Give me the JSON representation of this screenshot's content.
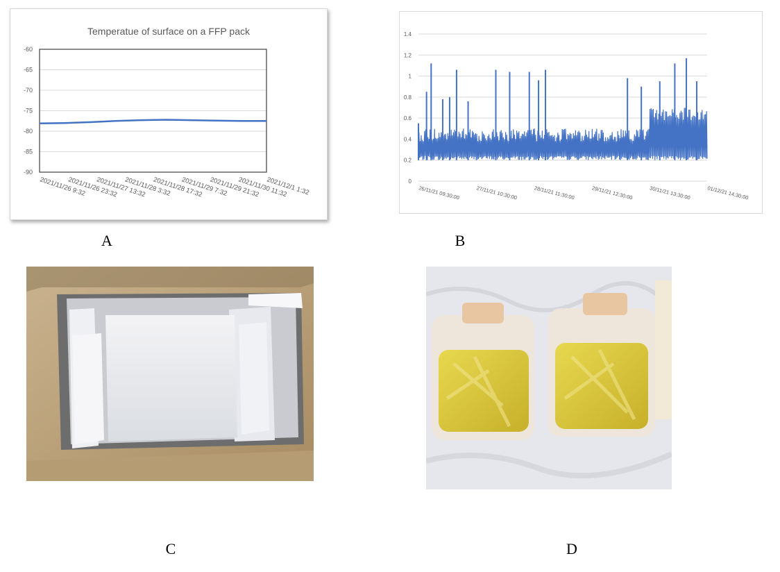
{
  "chart_data": [
    {
      "type": "line",
      "title": "Temperatue of surface on a FFP pack",
      "xlabel": "",
      "ylabel": "",
      "ylim": [
        -90,
        -60
      ],
      "yticks": [
        -60,
        -65,
        -70,
        -75,
        -80,
        -85,
        -90
      ],
      "xtick_labels": [
        "2021/11/26 9:32",
        "2021/11/26 23:32",
        "2021/11/27 13:32",
        "2021/11/28 3:32",
        "2021/11/28 17:32",
        "2021/11/29 7:32",
        "2021/11/29 21:32",
        "2021/11/30 11:32",
        "2021/12/1 1:32"
      ],
      "series": [
        {
          "color": "#4472c4",
          "x": [
            "2021/11/26 9:32",
            "2021/11/26 23:32",
            "2021/11/27 13:32",
            "2021/11/28 3:32",
            "2021/11/28 17:32",
            "2021/11/29 7:32",
            "2021/11/29 21:32",
            "2021/11/30 11:32",
            "2021/12/1 1:32",
            "2021/12/1 9:32"
          ],
          "values": [
            -78.1,
            -78.0,
            -77.8,
            -77.5,
            -77.3,
            -77.2,
            -77.3,
            -77.4,
            -77.5,
            -77.5
          ]
        }
      ],
      "grid": "horizontal"
    },
    {
      "type": "line",
      "title": "",
      "xlabel": "",
      "ylabel": "",
      "ylim": [
        0,
        1.4
      ],
      "yticks": [
        0,
        0.2,
        0.4,
        0.6,
        0.8,
        1,
        1.2,
        1.4
      ],
      "xtick_labels": [
        "26/11/21 09:30:00",
        "27/11/21 10:30:00",
        "28/11/21 11:30:00",
        "29/11/21 12:30:00",
        "30/11/21 13:30:00",
        "01/12/21 14:30:00"
      ],
      "series": [
        {
          "color": "#4472c4",
          "description_values": {
            "baseline_low": 0.2,
            "baseline_high": 0.5,
            "late_period_high": 0.7,
            "peaks": [
              {
                "x": "26/11/21 09:30:00",
                "y": 0.55
              },
              {
                "x": "26/11/21 13:00:00",
                "y": 0.85
              },
              {
                "x": "26/11/21 15:00:00",
                "y": 1.12
              },
              {
                "x": "26/11/21 20:00:00",
                "y": 0.78
              },
              {
                "x": "26/11/21 23:00:00",
                "y": 0.8
              },
              {
                "x": "27/11/21 02:00:00",
                "y": 1.06
              },
              {
                "x": "27/11/21 07:00:00",
                "y": 0.76
              },
              {
                "x": "27/11/21 19:00:00",
                "y": 1.06
              },
              {
                "x": "28/11/21 01:00:00",
                "y": 1.04
              },
              {
                "x": "28/11/21 09:30:00",
                "y": 1.04
              },
              {
                "x": "28/11/21 13:30:00",
                "y": 0.96
              },
              {
                "x": "28/11/21 16:30:00",
                "y": 1.06
              },
              {
                "x": "30/11/21 04:00:00",
                "y": 0.98
              },
              {
                "x": "30/11/21 10:00:00",
                "y": 0.9
              },
              {
                "x": "30/11/21 18:00:00",
                "y": 0.95
              },
              {
                "x": "01/12/21 00:30:00",
                "y": 1.12
              },
              {
                "x": "01/12/21 05:30:00",
                "y": 1.17
              },
              {
                "x": "01/12/21 10:00:00",
                "y": 0.95
              }
            ]
          }
        }
      ],
      "grid": "horizontal"
    }
  ],
  "captions": {
    "a": "A",
    "b": "B",
    "c": "C",
    "d": "D"
  }
}
